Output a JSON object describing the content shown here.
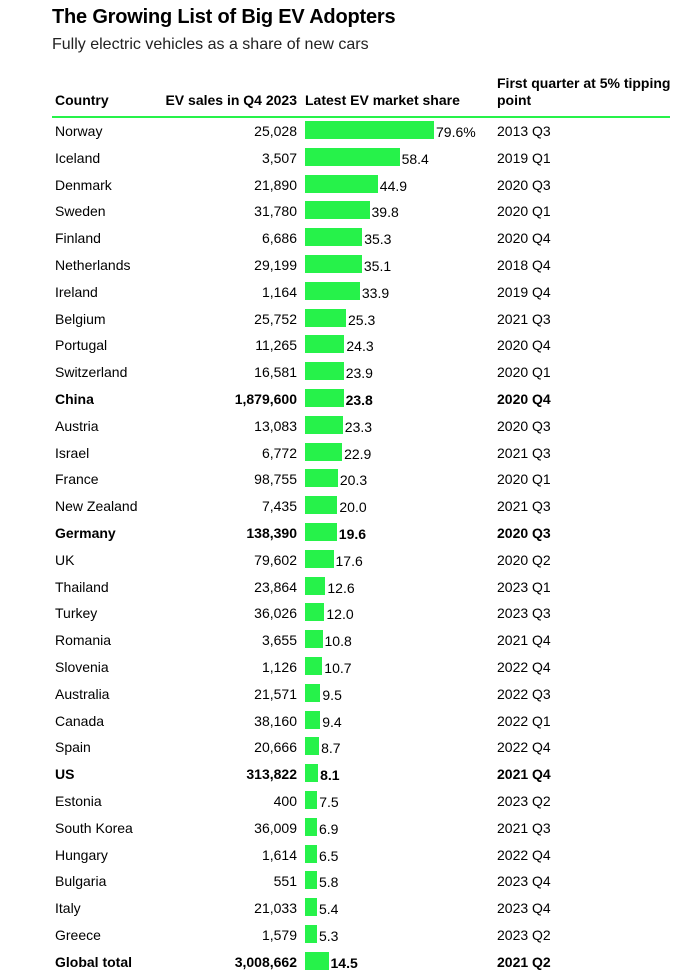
{
  "chart_data": {
    "type": "table",
    "title": "The Growing List of Big EV Adopters",
    "subtitle": "Fully electric vehicles as a share of new cars",
    "columns": {
      "country": "Country",
      "sales": "EV sales in Q4 2023",
      "share": "Latest EV market share",
      "first": "First quarter at 5% tipping point"
    },
    "bar_color": "#26f24a",
    "share_max": 79.6,
    "rows": [
      {
        "country": "Norway",
        "sales": "25,028",
        "share": 79.6,
        "share_label": "79.6%",
        "first": "2013 Q3",
        "bold": false
      },
      {
        "country": "Iceland",
        "sales": "3,507",
        "share": 58.4,
        "share_label": "58.4",
        "first": "2019 Q1",
        "bold": false
      },
      {
        "country": "Denmark",
        "sales": "21,890",
        "share": 44.9,
        "share_label": "44.9",
        "first": "2020 Q3",
        "bold": false
      },
      {
        "country": "Sweden",
        "sales": "31,780",
        "share": 39.8,
        "share_label": "39.8",
        "first": "2020 Q1",
        "bold": false
      },
      {
        "country": "Finland",
        "sales": "6,686",
        "share": 35.3,
        "share_label": "35.3",
        "first": "2020 Q4",
        "bold": false
      },
      {
        "country": "Netherlands",
        "sales": "29,199",
        "share": 35.1,
        "share_label": "35.1",
        "first": "2018 Q4",
        "bold": false
      },
      {
        "country": "Ireland",
        "sales": "1,164",
        "share": 33.9,
        "share_label": "33.9",
        "first": "2019 Q4",
        "bold": false
      },
      {
        "country": "Belgium",
        "sales": "25,752",
        "share": 25.3,
        "share_label": "25.3",
        "first": "2021 Q3",
        "bold": false
      },
      {
        "country": "Portugal",
        "sales": "11,265",
        "share": 24.3,
        "share_label": "24.3",
        "first": "2020 Q4",
        "bold": false
      },
      {
        "country": "Switzerland",
        "sales": "16,581",
        "share": 23.9,
        "share_label": "23.9",
        "first": "2020 Q1",
        "bold": false
      },
      {
        "country": "China",
        "sales": "1,879,600",
        "share": 23.8,
        "share_label": "23.8",
        "first": "2020 Q4",
        "bold": true
      },
      {
        "country": "Austria",
        "sales": "13,083",
        "share": 23.3,
        "share_label": "23.3",
        "first": "2020 Q3",
        "bold": false
      },
      {
        "country": "Israel",
        "sales": "6,772",
        "share": 22.9,
        "share_label": "22.9",
        "first": "2021 Q3",
        "bold": false
      },
      {
        "country": "France",
        "sales": "98,755",
        "share": 20.3,
        "share_label": "20.3",
        "first": "2020 Q1",
        "bold": false
      },
      {
        "country": "New Zealand",
        "sales": "7,435",
        "share": 20.0,
        "share_label": "20.0",
        "first": "2021 Q3",
        "bold": false
      },
      {
        "country": "Germany",
        "sales": "138,390",
        "share": 19.6,
        "share_label": "19.6",
        "first": "2020 Q3",
        "bold": true
      },
      {
        "country": "UK",
        "sales": "79,602",
        "share": 17.6,
        "share_label": "17.6",
        "first": "2020 Q2",
        "bold": false
      },
      {
        "country": "Thailand",
        "sales": "23,864",
        "share": 12.6,
        "share_label": "12.6",
        "first": "2023 Q1",
        "bold": false
      },
      {
        "country": "Turkey",
        "sales": "36,026",
        "share": 12.0,
        "share_label": "12.0",
        "first": "2023 Q3",
        "bold": false
      },
      {
        "country": "Romania",
        "sales": "3,655",
        "share": 10.8,
        "share_label": "10.8",
        "first": "2021 Q4",
        "bold": false
      },
      {
        "country": "Slovenia",
        "sales": "1,126",
        "share": 10.7,
        "share_label": "10.7",
        "first": "2022 Q4",
        "bold": false
      },
      {
        "country": "Australia",
        "sales": "21,571",
        "share": 9.5,
        "share_label": "9.5",
        "first": "2022 Q3",
        "bold": false
      },
      {
        "country": "Canada",
        "sales": "38,160",
        "share": 9.4,
        "share_label": "9.4",
        "first": "2022 Q1",
        "bold": false
      },
      {
        "country": "Spain",
        "sales": "20,666",
        "share": 8.7,
        "share_label": "8.7",
        "first": "2022 Q4",
        "bold": false
      },
      {
        "country": "US",
        "sales": "313,822",
        "share": 8.1,
        "share_label": "8.1",
        "first": "2021 Q4",
        "bold": true
      },
      {
        "country": "Estonia",
        "sales": "400",
        "share": 7.5,
        "share_label": "7.5",
        "first": "2023 Q2",
        "bold": false
      },
      {
        "country": "South Korea",
        "sales": "36,009",
        "share": 6.9,
        "share_label": "6.9",
        "first": "2021 Q3",
        "bold": false
      },
      {
        "country": "Hungary",
        "sales": "1,614",
        "share": 6.5,
        "share_label": "6.5",
        "first": "2022 Q4",
        "bold": false
      },
      {
        "country": "Bulgaria",
        "sales": "551",
        "share": 5.8,
        "share_label": "5.8",
        "first": "2023 Q4",
        "bold": false
      },
      {
        "country": "Italy",
        "sales": "21,033",
        "share": 5.4,
        "share_label": "5.4",
        "first": "2023 Q4",
        "bold": false
      },
      {
        "country": "Greece",
        "sales": "1,579",
        "share": 5.3,
        "share_label": "5.3",
        "first": "2023 Q2",
        "bold": false
      },
      {
        "country": "Global total",
        "sales": "3,008,662",
        "share": 14.5,
        "share_label": "14.5",
        "first": "2021 Q2",
        "bold": true
      }
    ]
  }
}
